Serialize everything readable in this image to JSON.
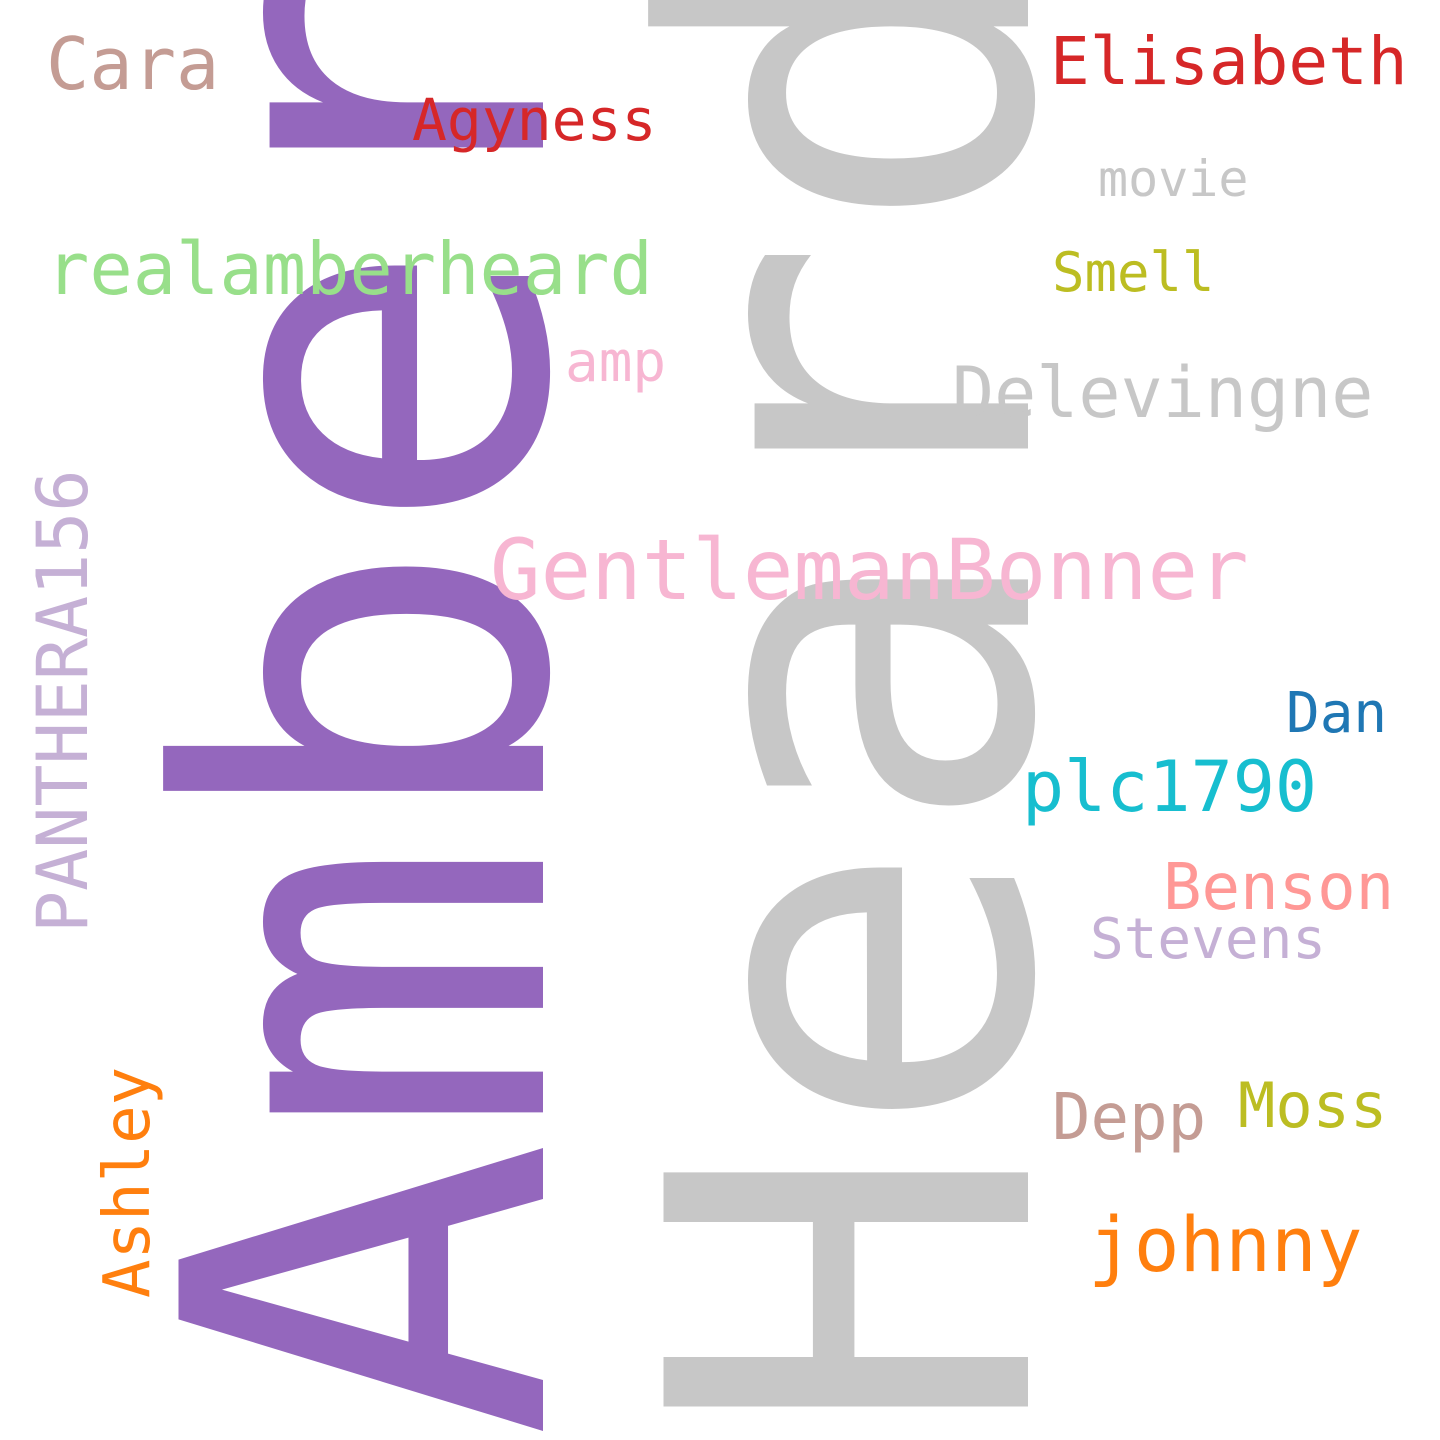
{
  "words": {
    "amber": {
      "text": "Amber",
      "color": "#9467bd"
    },
    "heard": {
      "text": "Heard",
      "color": "#c7c7c7"
    },
    "cara": {
      "text": "Cara",
      "color": "#c49c94"
    },
    "agyness": {
      "text": "Agyness",
      "color": "#d62728"
    },
    "elisabeth": {
      "text": "Elisabeth",
      "color": "#d62728"
    },
    "movie": {
      "text": "movie",
      "color": "#c7c7c7"
    },
    "realamberheard": {
      "text": "realamberheard",
      "color": "#98df8a"
    },
    "smell": {
      "text": "Smell",
      "color": "#bcbd22"
    },
    "amp": {
      "text": "amp",
      "color": "#f7b6d2"
    },
    "delevingne": {
      "text": "Delevingne",
      "color": "#c7c7c7"
    },
    "gentlemanbonner": {
      "text": "GentlemanBonner",
      "color": "#f7b6d2"
    },
    "panthera": {
      "text": "PANTHERA156",
      "color": "#c5b0d5"
    },
    "dan": {
      "text": "Dan",
      "color": "#1f77b4"
    },
    "plc": {
      "text": "plc1790",
      "color": "#17becf"
    },
    "benson": {
      "text": "Benson",
      "color": "#ff9896"
    },
    "stevens": {
      "text": "Stevens",
      "color": "#c5b0d5"
    },
    "ashley": {
      "text": "Ashley",
      "color": "#ff7f0e"
    },
    "moss": {
      "text": "Moss",
      "color": "#bcbd22"
    },
    "depp": {
      "text": "Depp",
      "color": "#c49c94"
    },
    "johnny": {
      "text": "johnny",
      "color": "#ff7f0e"
    }
  }
}
